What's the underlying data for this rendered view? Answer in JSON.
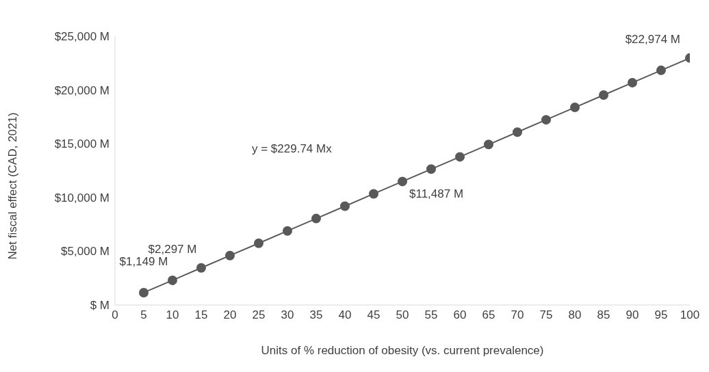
{
  "chart_data": {
    "type": "line",
    "xlabel": "Units of % reduction of obesity (vs. current prevalence)",
    "ylabel": "Net fiscal effect (CAD, 2021)",
    "x": [
      5,
      10,
      15,
      20,
      25,
      30,
      35,
      40,
      45,
      50,
      55,
      60,
      65,
      70,
      75,
      80,
      85,
      90,
      95,
      100
    ],
    "series": [
      {
        "color": "#595959",
        "values": [
          1149,
          2297,
          3450,
          4600,
          5740,
          6890,
          8040,
          9190,
          10340,
          11487,
          12640,
          13780,
          14930,
          16080,
          17230,
          18380,
          19530,
          20680,
          21830,
          22974
        ],
        "value_labels": [
          "$1,149 M",
          "$2,297 M",
          null,
          null,
          null,
          null,
          null,
          null,
          null,
          "$11,487 M",
          null,
          null,
          null,
          null,
          null,
          null,
          null,
          null,
          null,
          "$22,974 M"
        ]
      }
    ],
    "xlim": [
      0,
      100
    ],
    "xticks": [
      0,
      5,
      10,
      15,
      20,
      25,
      30,
      35,
      40,
      45,
      50,
      55,
      60,
      65,
      70,
      75,
      80,
      85,
      90,
      95,
      100
    ],
    "ylim": [
      0,
      25000
    ],
    "yticks": [
      {
        "value": 0,
        "label": "$ M"
      },
      {
        "value": 5000,
        "label": "$5,000 M"
      },
      {
        "value": 10000,
        "label": "$10,000 M"
      },
      {
        "value": 15000,
        "label": "$15,000 M"
      },
      {
        "value": 20000,
        "label": "$20,000 M"
      },
      {
        "value": 25000,
        "label": "$25,000 M"
      }
    ],
    "annotations": [
      "y = $229.74 Mx"
    ],
    "marker": "circle",
    "line_style": "solid",
    "grid": false,
    "legend": false
  }
}
